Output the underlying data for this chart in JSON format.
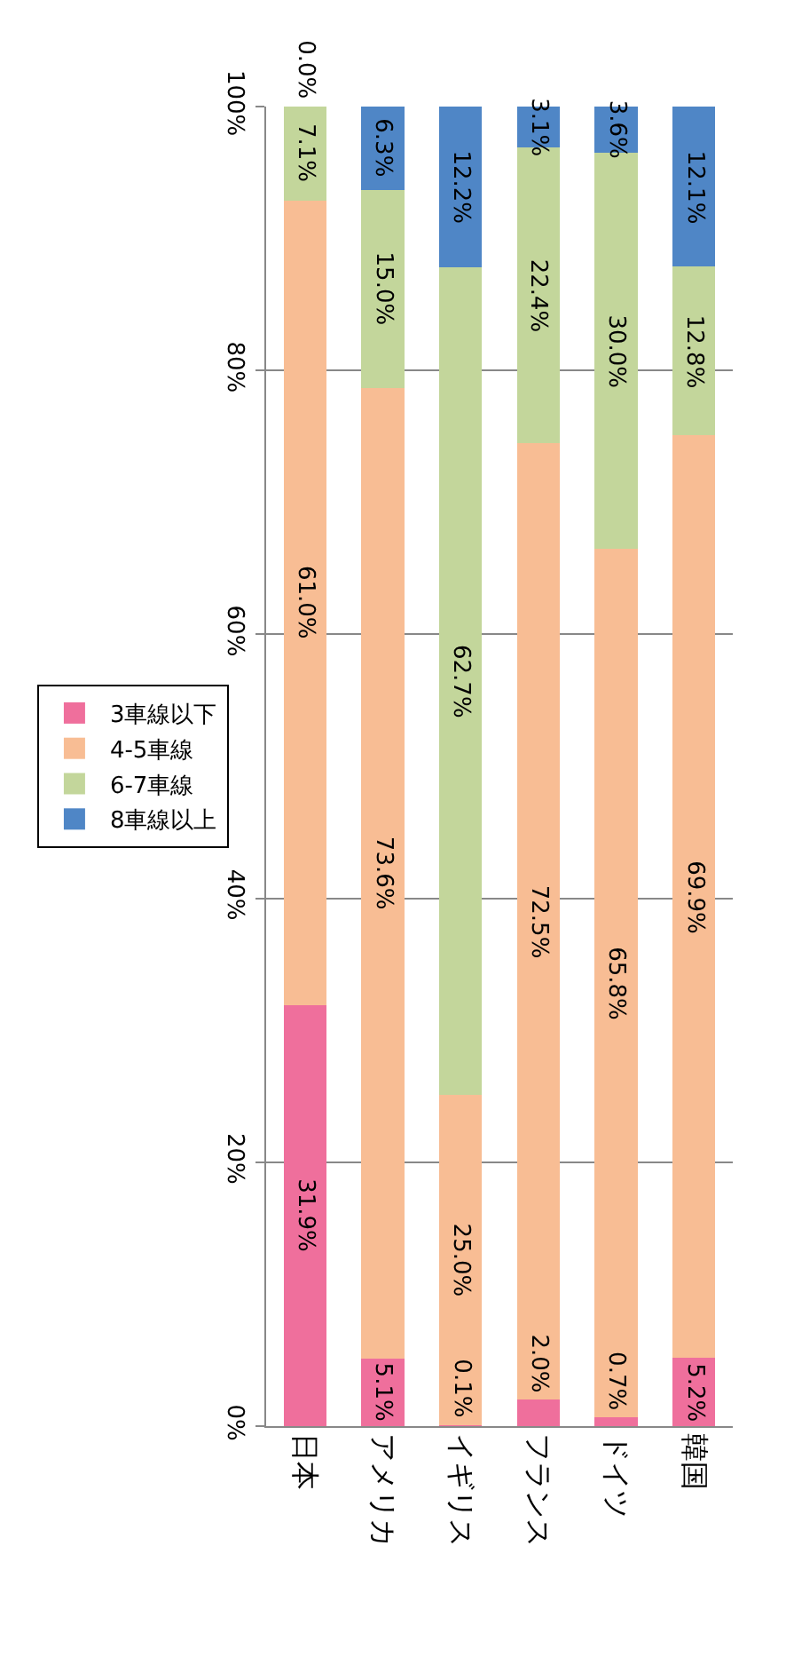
{
  "chart_data": {
    "type": "bar",
    "stacked": true,
    "categories": [
      "日本",
      "アメリカ",
      "イギリス",
      "フランス",
      "ドイツ",
      "韓国"
    ],
    "series": [
      {
        "name": "3車線以下",
        "color": "#ef6f9c",
        "values": [
          31.9,
          5.1,
          0.1,
          2.0,
          0.7,
          5.2
        ],
        "value_labels": [
          "31.9%",
          "5.1%",
          "0.1%",
          "2.0%",
          "0.7%",
          "5.2%"
        ]
      },
      {
        "name": "4-5車線",
        "color": "#f8bd94",
        "values": [
          61.0,
          73.6,
          25.0,
          72.5,
          65.8,
          69.9
        ],
        "value_labels": [
          "61.0%",
          "73.6%",
          "25.0%",
          "72.5%",
          "65.8%",
          "69.9%"
        ]
      },
      {
        "name": "6-7車線",
        "color": "#c3d69b",
        "values": [
          7.1,
          15.0,
          62.7,
          22.4,
          30.0,
          12.8
        ],
        "value_labels": [
          "7.1%",
          "15.0%",
          "62.7%",
          "22.4%",
          "30.0%",
          "12.8%"
        ]
      },
      {
        "name": "8車線以上",
        "color": "#4f86c6",
        "values": [
          0.0,
          6.3,
          12.2,
          3.1,
          3.6,
          12.1
        ],
        "value_labels": [
          "0.0%",
          "6.3%",
          "12.2%",
          "3.1%",
          "3.6%",
          "12.1%"
        ]
      }
    ],
    "ylim": [
      0,
      100
    ],
    "yticks": [
      {
        "value": 0,
        "label": "0%"
      },
      {
        "value": 20,
        "label": "20%"
      },
      {
        "value": 40,
        "label": "40%"
      },
      {
        "value": 60,
        "label": "60%"
      },
      {
        "value": 80,
        "label": "80%"
      },
      {
        "value": 100,
        "label": "100%"
      }
    ],
    "grid": "y",
    "legend": "left"
  }
}
